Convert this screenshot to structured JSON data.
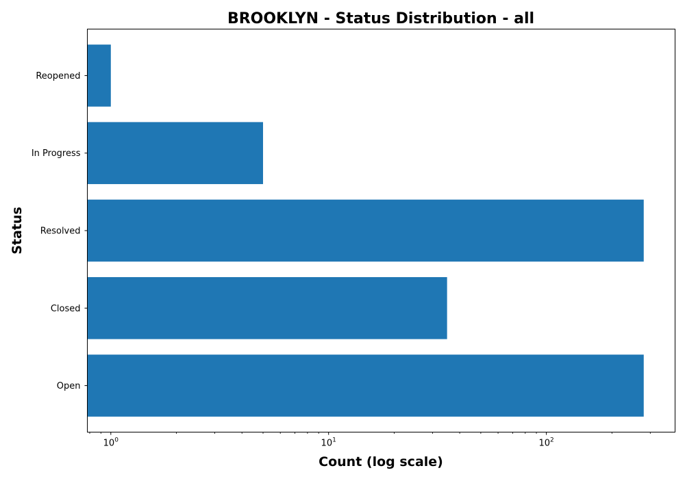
{
  "chart_data": {
    "type": "bar",
    "orientation": "horizontal",
    "title": "BROOKLYN - Status Distribution - all",
    "xlabel": "Count (log scale)",
    "ylabel": "Status",
    "x_scale": "log",
    "xlim": [
      0.78,
      390
    ],
    "x_major_ticks": [
      {
        "value": 1,
        "base": "10",
        "exp": "0"
      },
      {
        "value": 10,
        "base": "10",
        "exp": "1"
      },
      {
        "value": 100,
        "base": "10",
        "exp": "2"
      }
    ],
    "categories": [
      "Open",
      "Closed",
      "Resolved",
      "In Progress",
      "Reopened"
    ],
    "values": [
      280,
      35,
      280,
      5,
      1
    ],
    "bar_color": "#1f77b4",
    "grid": false,
    "legend": "none"
  }
}
